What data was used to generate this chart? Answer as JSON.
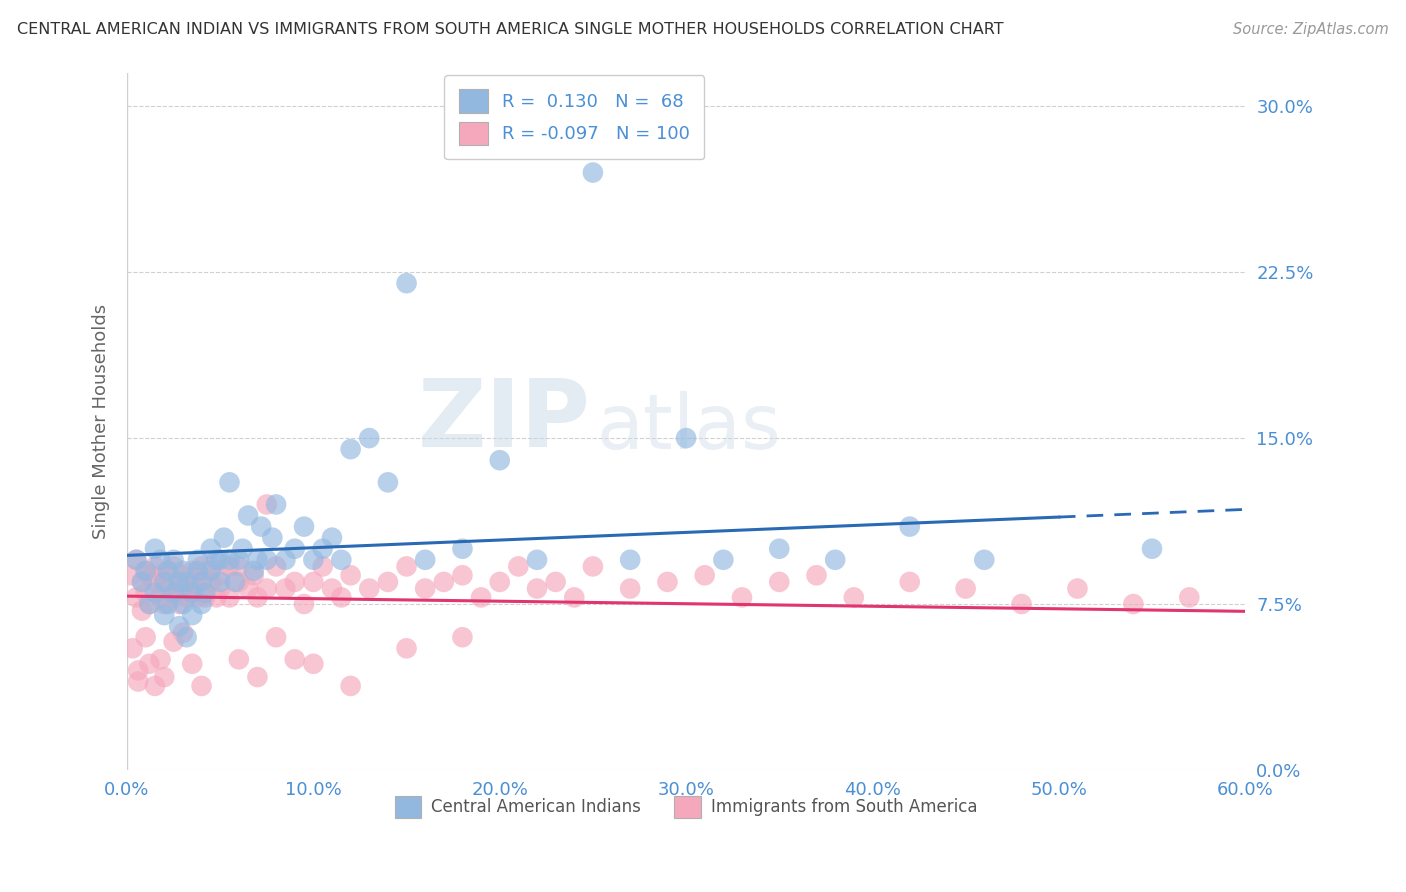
{
  "title": "CENTRAL AMERICAN INDIAN VS IMMIGRANTS FROM SOUTH AMERICA SINGLE MOTHER HOUSEHOLDS CORRELATION CHART",
  "source": "Source: ZipAtlas.com",
  "ylabel": "Single Mother Households",
  "xlim": [
    0.0,
    0.6
  ],
  "ylim": [
    0.0,
    0.315
  ],
  "xticks": [
    0.0,
    0.1,
    0.2,
    0.3,
    0.4,
    0.5,
    0.6
  ],
  "xticklabels": [
    "0.0%",
    "10.0%",
    "20.0%",
    "30.0%",
    "40.0%",
    "50.0%",
    "60.0%"
  ],
  "yticks": [
    0.0,
    0.075,
    0.15,
    0.225,
    0.3
  ],
  "yticklabels": [
    "0.0%",
    "7.5%",
    "15.0%",
    "22.5%",
    "30.0%"
  ],
  "blue_R": 0.13,
  "blue_N": 68,
  "pink_R": -0.097,
  "pink_N": 100,
  "legend_label_blue": "Central American Indians",
  "legend_label_pink": "Immigrants from South America",
  "blue_color": "#92b8e0",
  "pink_color": "#f5a8bc",
  "blue_line_color": "#2a6ab5",
  "pink_line_color": "#e03570",
  "watermark_zip": "ZIP",
  "watermark_atlas": "atlas",
  "background_color": "#ffffff",
  "title_color": "#333333",
  "axis_color": "#4b8fd4",
  "grid_color": "#d0d0d0",
  "blue_scatter_x": [
    0.005,
    0.008,
    0.01,
    0.012,
    0.015,
    0.015,
    0.018,
    0.02,
    0.02,
    0.022,
    0.022,
    0.025,
    0.025,
    0.028,
    0.028,
    0.03,
    0.03,
    0.032,
    0.032,
    0.035,
    0.035,
    0.038,
    0.038,
    0.04,
    0.04,
    0.042,
    0.045,
    0.045,
    0.048,
    0.05,
    0.05,
    0.052,
    0.055,
    0.055,
    0.058,
    0.06,
    0.062,
    0.065,
    0.068,
    0.07,
    0.072,
    0.075,
    0.078,
    0.08,
    0.085,
    0.09,
    0.095,
    0.1,
    0.105,
    0.11,
    0.115,
    0.12,
    0.13,
    0.14,
    0.15,
    0.16,
    0.18,
    0.2,
    0.22,
    0.25,
    0.27,
    0.3,
    0.32,
    0.35,
    0.38,
    0.42,
    0.46,
    0.55
  ],
  "blue_scatter_y": [
    0.095,
    0.085,
    0.09,
    0.075,
    0.1,
    0.08,
    0.095,
    0.085,
    0.07,
    0.09,
    0.075,
    0.08,
    0.095,
    0.085,
    0.065,
    0.09,
    0.075,
    0.085,
    0.06,
    0.08,
    0.07,
    0.09,
    0.095,
    0.075,
    0.085,
    0.08,
    0.09,
    0.1,
    0.095,
    0.085,
    0.095,
    0.105,
    0.095,
    0.13,
    0.085,
    0.095,
    0.1,
    0.115,
    0.09,
    0.095,
    0.11,
    0.095,
    0.105,
    0.12,
    0.095,
    0.1,
    0.11,
    0.095,
    0.1,
    0.105,
    0.095,
    0.145,
    0.15,
    0.13,
    0.22,
    0.095,
    0.1,
    0.14,
    0.095,
    0.27,
    0.095,
    0.15,
    0.095,
    0.1,
    0.095,
    0.11,
    0.095,
    0.1
  ],
  "pink_scatter_x": [
    0.002,
    0.005,
    0.005,
    0.008,
    0.008,
    0.01,
    0.01,
    0.012,
    0.012,
    0.015,
    0.015,
    0.018,
    0.018,
    0.02,
    0.02,
    0.022,
    0.022,
    0.025,
    0.025,
    0.028,
    0.028,
    0.03,
    0.03,
    0.032,
    0.035,
    0.035,
    0.038,
    0.038,
    0.04,
    0.04,
    0.042,
    0.045,
    0.045,
    0.048,
    0.05,
    0.05,
    0.055,
    0.055,
    0.06,
    0.06,
    0.065,
    0.068,
    0.07,
    0.075,
    0.075,
    0.08,
    0.085,
    0.09,
    0.095,
    0.1,
    0.105,
    0.11,
    0.115,
    0.12,
    0.13,
    0.14,
    0.15,
    0.16,
    0.17,
    0.18,
    0.19,
    0.2,
    0.21,
    0.22,
    0.23,
    0.24,
    0.25,
    0.27,
    0.29,
    0.31,
    0.33,
    0.35,
    0.37,
    0.39,
    0.42,
    0.45,
    0.48,
    0.51,
    0.54,
    0.57,
    0.003,
    0.006,
    0.006,
    0.01,
    0.012,
    0.015,
    0.018,
    0.02,
    0.025,
    0.03,
    0.035,
    0.04,
    0.06,
    0.07,
    0.08,
    0.09,
    0.1,
    0.12,
    0.15,
    0.18
  ],
  "pink_scatter_y": [
    0.088,
    0.078,
    0.095,
    0.085,
    0.072,
    0.09,
    0.08,
    0.088,
    0.075,
    0.085,
    0.092,
    0.078,
    0.088,
    0.082,
    0.075,
    0.09,
    0.085,
    0.078,
    0.092,
    0.082,
    0.075,
    0.088,
    0.082,
    0.078,
    0.09,
    0.082,
    0.088,
    0.078,
    0.085,
    0.092,
    0.078,
    0.085,
    0.092,
    0.078,
    0.088,
    0.082,
    0.092,
    0.078,
    0.085,
    0.092,
    0.082,
    0.088,
    0.078,
    0.12,
    0.082,
    0.092,
    0.082,
    0.085,
    0.075,
    0.085,
    0.092,
    0.082,
    0.078,
    0.088,
    0.082,
    0.085,
    0.092,
    0.082,
    0.085,
    0.088,
    0.078,
    0.085,
    0.092,
    0.082,
    0.085,
    0.078,
    0.092,
    0.082,
    0.085,
    0.088,
    0.078,
    0.085,
    0.088,
    0.078,
    0.085,
    0.082,
    0.075,
    0.082,
    0.075,
    0.078,
    0.055,
    0.045,
    0.04,
    0.06,
    0.048,
    0.038,
    0.05,
    0.042,
    0.058,
    0.062,
    0.048,
    0.038,
    0.05,
    0.042,
    0.06,
    0.05,
    0.048,
    0.038,
    0.055,
    0.06
  ]
}
